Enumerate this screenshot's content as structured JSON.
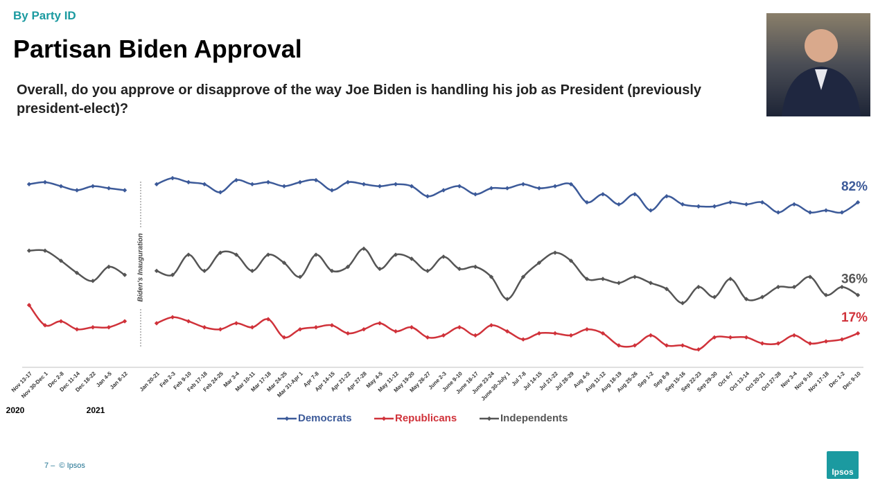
{
  "header": {
    "section": "By Party ID",
    "title": "Partisan Biden Approval",
    "question": "Overall, do you approve or disapprove of the way Joe Biden is handling his job as President (previously president-elect)?"
  },
  "footer": {
    "text": "7 –  © Ipsos",
    "logo": "Ipsos"
  },
  "chart_data": {
    "type": "line",
    "categories": [
      "Nov 13-17",
      "Nov 30-Dec 1",
      "Dec 2-8",
      "Dec 11-14",
      "Dec 18-22",
      "Jan 4-5",
      "Jan 8-12",
      null,
      "Jan 20-21",
      "Feb 2-3",
      "Feb 9-10",
      "Feb 17-18",
      "Feb 24-25",
      "Mar 3-4",
      "Mar 10-11",
      "Mar 17-18",
      "Mar 24-25",
      "Mar 31-Apr 1",
      "Apr 7-8",
      "Apr 14-15",
      "Apr 21-22",
      "Apr 27-28",
      "May 4-5",
      "May 11-12",
      "May 19-20",
      "May 26-27",
      "June 2-3",
      "June 9-10",
      "June 16-17",
      "June 23-24",
      "June 30-July 1",
      "Jul 7-8",
      "Jul 14-15",
      "Jul 21-22",
      "Jul 28-29",
      "Aug 4-5",
      "Aug 11-12",
      "Aug 18-19",
      "Aug 25-26",
      "Sep 1-2",
      "Sep 8-9",
      "Sep 15-16",
      "Sep 22-23",
      "Sep 29-30",
      "Oct 6-7",
      "Oct 13-14",
      "Oct 20-21",
      "Oct 27-28",
      "Nov 3-4",
      "Nov 9-10",
      "Nov 17-18",
      "Dec 1-2",
      "Dec 9-10"
    ],
    "year_labels": [
      "2020",
      "2021"
    ],
    "divider_label": "Biden's Inauguration",
    "ylim": [
      0,
      100
    ],
    "series": [
      {
        "name": "Democrats",
        "color": "#3c5a99",
        "values": [
          91,
          92,
          90,
          88,
          90,
          89,
          88,
          null,
          91,
          94,
          92,
          91,
          87,
          93,
          91,
          92,
          90,
          92,
          93,
          88,
          92,
          91,
          90,
          91,
          90,
          85,
          88,
          90,
          86,
          89,
          89,
          91,
          89,
          90,
          91,
          82,
          86,
          81,
          86,
          78,
          85,
          81,
          80,
          80,
          82,
          81,
          82,
          77,
          81,
          77,
          78,
          77,
          82
        ],
        "value_labels": [
          null,
          null,
          null,
          null,
          null,
          null,
          null,
          null,
          null,
          null,
          null,
          null,
          null,
          null,
          null,
          null,
          null,
          null,
          null,
          null,
          null,
          null,
          null,
          null,
          null,
          null,
          null,
          null,
          null,
          null,
          null,
          null,
          null,
          null,
          null,
          null,
          null,
          null,
          null,
          null,
          null,
          null,
          null,
          null,
          null,
          null,
          null,
          null,
          null,
          null,
          null,
          null,
          "82%"
        ]
      },
      {
        "name": "Republicans",
        "color": "#d0323a",
        "values": [
          31,
          21,
          23,
          19,
          20,
          20,
          23,
          null,
          22,
          25,
          23,
          20,
          19,
          22,
          20,
          24,
          15,
          19,
          20,
          21,
          17,
          19,
          22,
          18,
          20,
          15,
          16,
          20,
          16,
          21,
          18,
          14,
          17,
          17,
          16,
          19,
          17,
          11,
          11,
          16,
          11,
          11,
          9,
          15,
          15,
          15,
          12,
          12,
          16,
          12,
          13,
          14,
          17
        ],
        "value_labels": [
          null,
          null,
          null,
          null,
          null,
          null,
          null,
          null,
          null,
          null,
          null,
          null,
          null,
          null,
          null,
          null,
          null,
          null,
          null,
          null,
          null,
          null,
          null,
          null,
          null,
          null,
          null,
          null,
          null,
          null,
          null,
          null,
          null,
          null,
          null,
          null,
          null,
          null,
          null,
          null,
          null,
          null,
          null,
          null,
          null,
          null,
          null,
          null,
          null,
          null,
          null,
          null,
          "17%"
        ]
      },
      {
        "name": "Independents",
        "color": "#555555",
        "values": [
          58,
          58,
          53,
          47,
          43,
          50,
          46,
          null,
          48,
          46,
          56,
          48,
          57,
          56,
          48,
          56,
          52,
          45,
          56,
          48,
          50,
          59,
          49,
          56,
          54,
          48,
          55,
          49,
          50,
          45,
          34,
          45,
          52,
          57,
          53,
          44,
          44,
          42,
          45,
          42,
          39,
          32,
          40,
          35,
          44,
          34,
          35,
          40,
          40,
          45,
          36,
          40,
          36
        ],
        "value_labels": [
          null,
          null,
          null,
          null,
          null,
          null,
          null,
          null,
          null,
          null,
          null,
          null,
          null,
          null,
          null,
          null,
          null,
          null,
          null,
          null,
          null,
          null,
          null,
          null,
          null,
          null,
          null,
          null,
          null,
          null,
          null,
          null,
          null,
          null,
          null,
          null,
          null,
          null,
          null,
          null,
          null,
          null,
          null,
          null,
          null,
          null,
          null,
          null,
          null,
          null,
          null,
          null,
          "36%"
        ]
      }
    ]
  }
}
